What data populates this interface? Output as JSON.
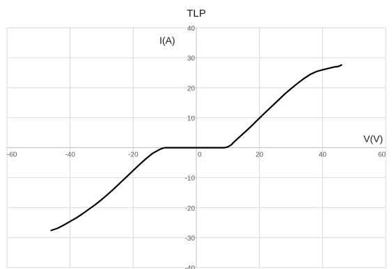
{
  "chart_data": {
    "type": "scatter",
    "title": "TLP",
    "xlabel": "V(V)",
    "ylabel": "I(A)",
    "xlim": [
      -60,
      60
    ],
    "ylim": [
      -40,
      40
    ],
    "x_ticks": [
      -60,
      -40,
      -20,
      0,
      20,
      40,
      60
    ],
    "y_ticks": [
      -40,
      -30,
      -20,
      -10,
      0,
      10,
      20,
      30,
      40
    ],
    "grid": true,
    "series": [
      {
        "color": "#000000",
        "points": [
          [
            -46,
            -27.6
          ],
          [
            -44,
            -26.9
          ],
          [
            -42,
            -25.8
          ],
          [
            -40,
            -24.6
          ],
          [
            -38,
            -23.4
          ],
          [
            -36,
            -22.0
          ],
          [
            -34,
            -20.5
          ],
          [
            -32,
            -19.0
          ],
          [
            -30,
            -17.3
          ],
          [
            -28,
            -15.5
          ],
          [
            -26,
            -13.6
          ],
          [
            -24,
            -11.6
          ],
          [
            -22,
            -9.6
          ],
          [
            -20,
            -7.6
          ],
          [
            -18,
            -5.6
          ],
          [
            -16,
            -3.7
          ],
          [
            -14,
            -2.0
          ],
          [
            -12,
            -0.8
          ],
          [
            -11,
            -0.3
          ],
          [
            -10,
            0
          ],
          [
            -8,
            0
          ],
          [
            -5,
            0
          ],
          [
            0,
            0
          ],
          [
            5,
            0
          ],
          [
            9,
            0
          ],
          [
            10,
            0.3
          ],
          [
            11,
            0.9
          ],
          [
            12,
            2.0
          ],
          [
            14,
            3.9
          ],
          [
            16,
            5.8
          ],
          [
            18,
            7.8
          ],
          [
            20,
            9.9
          ],
          [
            22,
            11.9
          ],
          [
            24,
            13.9
          ],
          [
            26,
            15.9
          ],
          [
            28,
            17.9
          ],
          [
            30,
            19.7
          ],
          [
            32,
            21.4
          ],
          [
            34,
            23.0
          ],
          [
            36,
            24.4
          ],
          [
            38,
            25.4
          ],
          [
            40,
            26.0
          ],
          [
            42,
            26.5
          ],
          [
            44,
            27.0
          ],
          [
            45,
            27.1
          ],
          [
            46,
            27.6
          ]
        ]
      }
    ]
  }
}
